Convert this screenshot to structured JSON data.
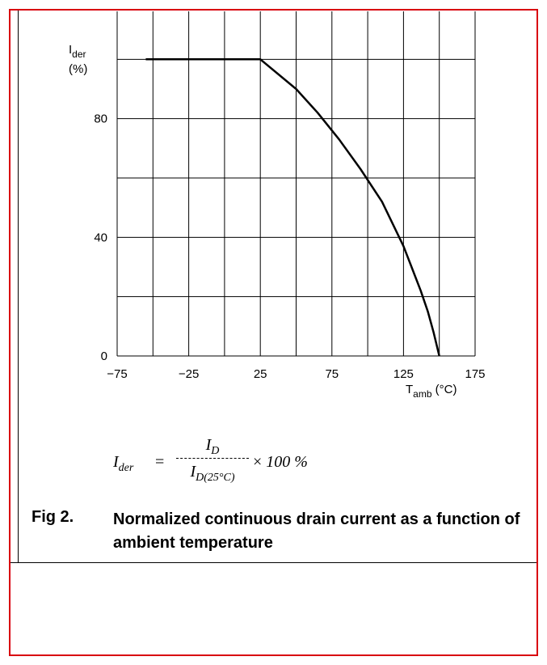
{
  "chart_data": {
    "type": "line",
    "ylabel_main": "I",
    "ylabel_sub": "der",
    "ylabel_unit": "(%)",
    "xlabel_main": "T",
    "xlabel_sub": "amb",
    "xlabel_unit": " (°C)",
    "xlim": [
      -75,
      175
    ],
    "ylim": [
      0,
      120
    ],
    "x_grid": [
      -75,
      -50,
      -25,
      0,
      25,
      50,
      75,
      100,
      125,
      150,
      175
    ],
    "y_grid": [
      0,
      20,
      40,
      60,
      80,
      100,
      120
    ],
    "x_ticks": [
      {
        "value": -75,
        "label": "−75"
      },
      {
        "value": -25,
        "label": "−25"
      },
      {
        "value": 25,
        "label": "25"
      },
      {
        "value": 75,
        "label": "75"
      },
      {
        "value": 125,
        "label": "125"
      },
      {
        "value": 175,
        "label": "175"
      }
    ],
    "y_ticks": [
      {
        "value": 0,
        "label": "0"
      },
      {
        "value": 40,
        "label": "40"
      },
      {
        "value": 80,
        "label": "80"
      }
    ],
    "grid": true,
    "series": [
      {
        "x": [
          -55,
          25,
          50,
          65,
          80,
          95,
          110,
          125,
          137,
          142,
          146,
          150
        ],
        "y": [
          100,
          100,
          90,
          82,
          73,
          63,
          52,
          37,
          22,
          15,
          8,
          0
        ]
      }
    ]
  },
  "formula": {
    "lhs_main": "I",
    "lhs_sub": "der",
    "eq": "=",
    "num_main": "I",
    "num_sub": "D",
    "den_main": "I",
    "den_sub": "D(25°C)",
    "times": "×",
    "rhs": "100 %"
  },
  "caption": {
    "number": "Fig 2.",
    "text": "Normalized continuous drain current as a function of ambient temperature"
  },
  "colors": {
    "frame": "#d9000d",
    "lines": "#000000"
  }
}
